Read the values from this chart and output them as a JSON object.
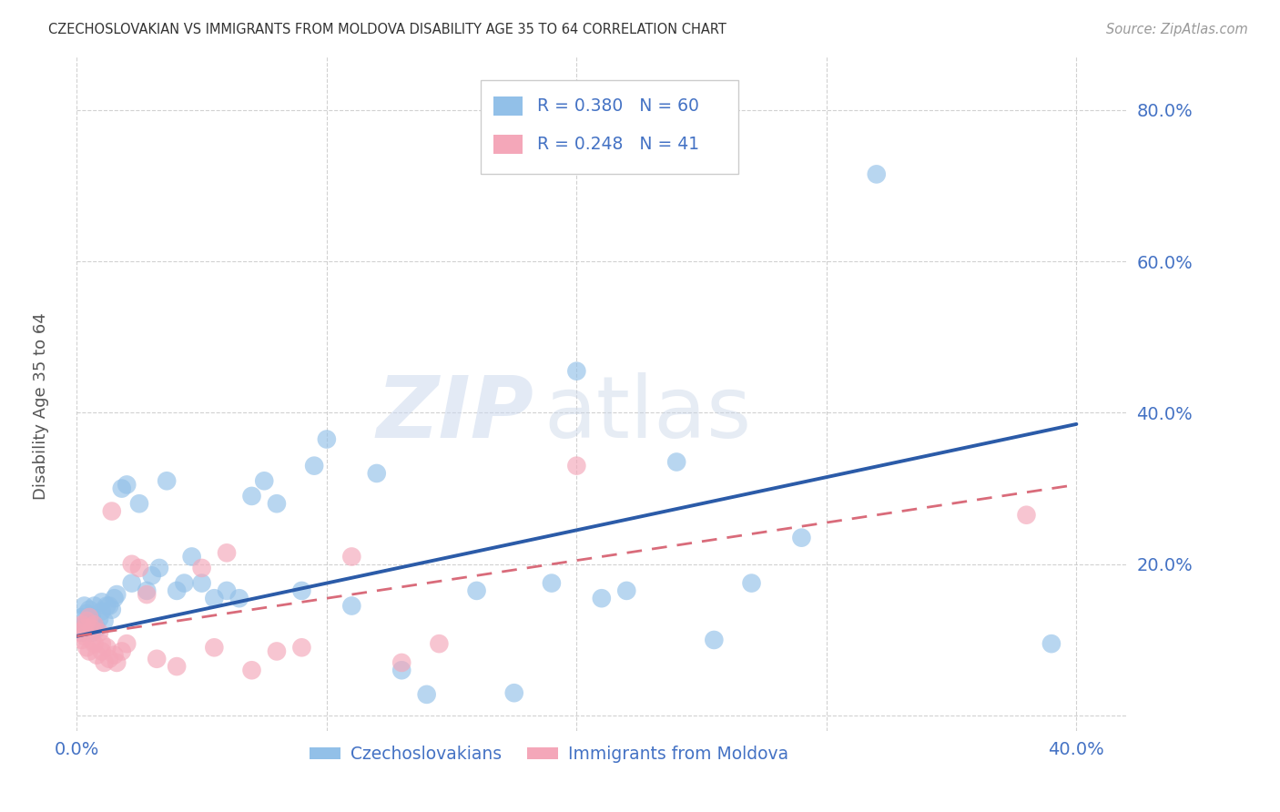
{
  "title": "CZECHOSLOVAKIAN VS IMMIGRANTS FROM MOLDOVA DISABILITY AGE 35 TO 64 CORRELATION CHART",
  "source": "Source: ZipAtlas.com",
  "ylabel": "Disability Age 35 to 64",
  "xlim": [
    0.0,
    0.42
  ],
  "ylim": [
    -0.02,
    0.87
  ],
  "xticks": [
    0.0,
    0.1,
    0.2,
    0.3,
    0.4
  ],
  "yticks": [
    0.0,
    0.2,
    0.4,
    0.6,
    0.8
  ],
  "blue_R": 0.38,
  "blue_N": 60,
  "pink_R": 0.248,
  "pink_N": 41,
  "blue_color": "#92C0E8",
  "pink_color": "#F4A7B9",
  "blue_line_color": "#2B5BA8",
  "pink_line_color": "#D96B7A",
  "grid_color": "#cccccc",
  "background_color": "#ffffff",
  "watermark_zip": "ZIP",
  "watermark_atlas": "atlas",
  "legend_blue_label": "Czechoslovakians",
  "legend_pink_label": "Immigrants from Moldova",
  "blue_x": [
    0.001,
    0.002,
    0.002,
    0.003,
    0.003,
    0.004,
    0.004,
    0.005,
    0.005,
    0.006,
    0.006,
    0.007,
    0.007,
    0.008,
    0.009,
    0.01,
    0.01,
    0.011,
    0.012,
    0.013,
    0.014,
    0.015,
    0.016,
    0.018,
    0.02,
    0.022,
    0.025,
    0.028,
    0.03,
    0.033,
    0.036,
    0.04,
    0.043,
    0.046,
    0.05,
    0.055,
    0.06,
    0.065,
    0.07,
    0.075,
    0.08,
    0.09,
    0.095,
    0.1,
    0.11,
    0.12,
    0.13,
    0.14,
    0.16,
    0.175,
    0.19,
    0.2,
    0.21,
    0.22,
    0.24,
    0.255,
    0.27,
    0.29,
    0.32,
    0.39
  ],
  "blue_y": [
    0.115,
    0.13,
    0.11,
    0.145,
    0.12,
    0.135,
    0.115,
    0.125,
    0.14,
    0.13,
    0.11,
    0.12,
    0.145,
    0.115,
    0.128,
    0.138,
    0.15,
    0.125,
    0.145,
    0.145,
    0.14,
    0.155,
    0.16,
    0.3,
    0.305,
    0.175,
    0.28,
    0.165,
    0.185,
    0.195,
    0.31,
    0.165,
    0.175,
    0.21,
    0.175,
    0.155,
    0.165,
    0.155,
    0.29,
    0.31,
    0.28,
    0.165,
    0.33,
    0.365,
    0.145,
    0.32,
    0.06,
    0.028,
    0.165,
    0.03,
    0.175,
    0.455,
    0.155,
    0.165,
    0.335,
    0.1,
    0.175,
    0.235,
    0.715,
    0.095
  ],
  "pink_x": [
    0.001,
    0.002,
    0.002,
    0.003,
    0.003,
    0.004,
    0.004,
    0.005,
    0.005,
    0.006,
    0.006,
    0.007,
    0.007,
    0.008,
    0.009,
    0.01,
    0.01,
    0.011,
    0.012,
    0.013,
    0.014,
    0.015,
    0.016,
    0.018,
    0.02,
    0.022,
    0.025,
    0.028,
    0.032,
    0.04,
    0.05,
    0.055,
    0.06,
    0.07,
    0.08,
    0.09,
    0.11,
    0.13,
    0.145,
    0.2,
    0.38
  ],
  "pink_y": [
    0.11,
    0.12,
    0.1,
    0.115,
    0.105,
    0.125,
    0.09,
    0.13,
    0.085,
    0.1,
    0.115,
    0.095,
    0.12,
    0.08,
    0.11,
    0.095,
    0.085,
    0.07,
    0.09,
    0.075,
    0.27,
    0.08,
    0.07,
    0.085,
    0.095,
    0.2,
    0.195,
    0.16,
    0.075,
    0.065,
    0.195,
    0.09,
    0.215,
    0.06,
    0.085,
    0.09,
    0.21,
    0.07,
    0.095,
    0.33,
    0.265
  ],
  "blue_trend_x0": 0.0,
  "blue_trend_y0": 0.105,
  "blue_trend_x1": 0.4,
  "blue_trend_y1": 0.385,
  "pink_trend_x0": 0.0,
  "pink_trend_y0": 0.105,
  "pink_trend_x1": 0.4,
  "pink_trend_y1": 0.305
}
